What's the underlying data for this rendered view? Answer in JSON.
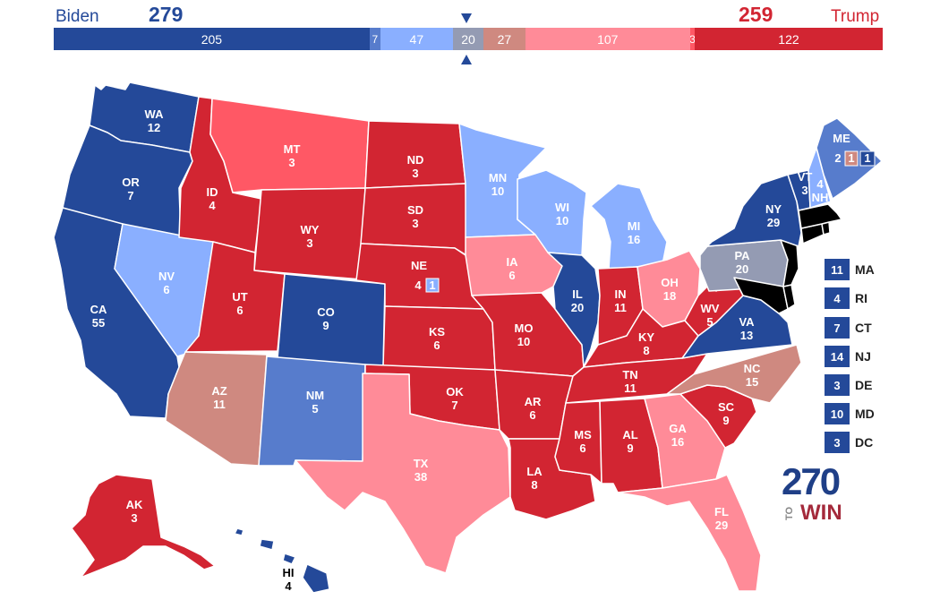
{
  "header": {
    "dem_name": "Biden",
    "dem_total": "279",
    "rep_name": "Trump",
    "rep_total": "259"
  },
  "colors": {
    "safe_d": "#244999",
    "likely_d": "#577ccc",
    "lean_d": "#8aafff",
    "tilt_d": "#949bb3",
    "tossup": "#9e9e9e",
    "tilt_r": "#cf8980",
    "lean_r": "#ff8b98",
    "likely_r": "#ff5865",
    "safe_r": "#d22532"
  },
  "bar": [
    {
      "value": "205",
      "color": "#244999",
      "ev": 205
    },
    {
      "value": "7",
      "color": "#577ccc",
      "ev": 7
    },
    {
      "value": "47",
      "color": "#8aafff",
      "ev": 47
    },
    {
      "value": "20",
      "color": "#949bb3",
      "ev": 20
    },
    {
      "value": "27",
      "color": "#cf8980",
      "ev": 27
    },
    {
      "value": "107",
      "color": "#ff8b98",
      "ev": 107
    },
    {
      "value": "3",
      "color": "#ff5865",
      "ev": 3
    },
    {
      "value": "122",
      "color": "#d22532",
      "ev": 122
    }
  ],
  "states": [
    {
      "abbr": "WA",
      "ev": "12",
      "rating": "safe_d"
    },
    {
      "abbr": "OR",
      "ev": "7",
      "rating": "safe_d"
    },
    {
      "abbr": "CA",
      "ev": "55",
      "rating": "safe_d"
    },
    {
      "abbr": "NV",
      "ev": "6",
      "rating": "lean_d"
    },
    {
      "abbr": "ID",
      "ev": "4",
      "rating": "safe_r"
    },
    {
      "abbr": "MT",
      "ev": "3",
      "rating": "likely_r"
    },
    {
      "abbr": "WY",
      "ev": "3",
      "rating": "safe_r"
    },
    {
      "abbr": "UT",
      "ev": "6",
      "rating": "safe_r"
    },
    {
      "abbr": "AZ",
      "ev": "11",
      "rating": "tilt_r"
    },
    {
      "abbr": "CO",
      "ev": "9",
      "rating": "safe_d"
    },
    {
      "abbr": "NM",
      "ev": "5",
      "rating": "likely_d"
    },
    {
      "abbr": "ND",
      "ev": "3",
      "rating": "safe_r"
    },
    {
      "abbr": "SD",
      "ev": "3",
      "rating": "safe_r"
    },
    {
      "abbr": "NE",
      "ev": "4",
      "rating": "safe_r"
    },
    {
      "abbr": "KS",
      "ev": "6",
      "rating": "safe_r"
    },
    {
      "abbr": "OK",
      "ev": "7",
      "rating": "safe_r"
    },
    {
      "abbr": "TX",
      "ev": "38",
      "rating": "lean_r"
    },
    {
      "abbr": "MN",
      "ev": "10",
      "rating": "lean_d"
    },
    {
      "abbr": "IA",
      "ev": "6",
      "rating": "lean_r"
    },
    {
      "abbr": "MO",
      "ev": "10",
      "rating": "safe_r"
    },
    {
      "abbr": "AR",
      "ev": "6",
      "rating": "safe_r"
    },
    {
      "abbr": "LA",
      "ev": "8",
      "rating": "safe_r"
    },
    {
      "abbr": "WI",
      "ev": "10",
      "rating": "lean_d"
    },
    {
      "abbr": "IL",
      "ev": "20",
      "rating": "safe_d"
    },
    {
      "abbr": "MI",
      "ev": "16",
      "rating": "lean_d"
    },
    {
      "abbr": "IN",
      "ev": "11",
      "rating": "safe_r"
    },
    {
      "abbr": "OH",
      "ev": "18",
      "rating": "lean_r"
    },
    {
      "abbr": "KY",
      "ev": "8",
      "rating": "safe_r"
    },
    {
      "abbr": "TN",
      "ev": "11",
      "rating": "safe_r"
    },
    {
      "abbr": "MS",
      "ev": "6",
      "rating": "safe_r"
    },
    {
      "abbr": "AL",
      "ev": "9",
      "rating": "safe_r"
    },
    {
      "abbr": "GA",
      "ev": "16",
      "rating": "lean_r"
    },
    {
      "abbr": "FL",
      "ev": "29",
      "rating": "lean_r"
    },
    {
      "abbr": "SC",
      "ev": "9",
      "rating": "safe_r"
    },
    {
      "abbr": "NC",
      "ev": "15",
      "rating": "tilt_r"
    },
    {
      "abbr": "VA",
      "ev": "13",
      "rating": "safe_d"
    },
    {
      "abbr": "WV",
      "ev": "5",
      "rating": "safe_r"
    },
    {
      "abbr": "PA",
      "ev": "20",
      "rating": "tilt_d"
    },
    {
      "abbr": "NY",
      "ev": "29",
      "rating": "safe_d"
    },
    {
      "abbr": "VT",
      "ev": "3",
      "rating": "safe_d"
    },
    {
      "abbr": "NH",
      "ev": "4",
      "rating": "lean_d"
    },
    {
      "abbr": "ME",
      "ev": "",
      "rating": "likely_d"
    },
    {
      "abbr": "AK",
      "ev": "3",
      "rating": "safe_r"
    },
    {
      "abbr": "HI",
      "ev": "4",
      "rating": "safe_d"
    }
  ],
  "districts": {
    "ne_at_large": "4",
    "ne_cd2": "1",
    "me_at_large": "2",
    "me_cd2": "1",
    "me_cd1": "1"
  },
  "side_states": [
    {
      "ev": "11",
      "abbr": "MA"
    },
    {
      "ev": "4",
      "abbr": "RI"
    },
    {
      "ev": "7",
      "abbr": "CT"
    },
    {
      "ev": "14",
      "abbr": "NJ"
    },
    {
      "ev": "3",
      "abbr": "DE"
    },
    {
      "ev": "10",
      "abbr": "MD"
    },
    {
      "ev": "3",
      "abbr": "DC"
    }
  ],
  "logo": {
    "number": "270",
    "to": "TO",
    "win": "WIN"
  }
}
